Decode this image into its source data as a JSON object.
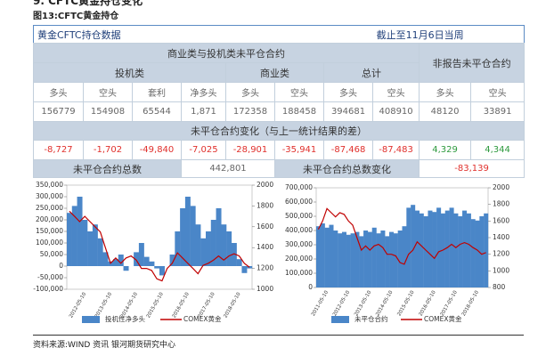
{
  "header": {
    "section": "9. CFTC黄金持仓变化",
    "caption": "图13:CFTC黄金持仓"
  },
  "table": {
    "title": "黄金CFTC持仓数据",
    "date_note": "截止至11月6日当周",
    "group_header": "商业类与投机类未平仓合约",
    "nonreport_header": "非报告未平仓合约",
    "subgroups": [
      "投机类",
      "商业类",
      "总计"
    ],
    "columns": [
      "多头",
      "空头",
      "套利",
      "净多头",
      "多头",
      "空头",
      "多头",
      "空头",
      "多头",
      "空头"
    ],
    "values": [
      "156779",
      "154908",
      "65544",
      "1,871",
      "172358",
      "188458",
      "394681",
      "408910",
      "48120",
      "33891"
    ],
    "change_header": "未平仓合约变化（与上一统计结果的差）",
    "changes": [
      "-8,727",
      "-1,702",
      "-49,840",
      "-7,025",
      "-28,901",
      "-35,941",
      "-87,468",
      "-87,483",
      "4,329",
      "4,344"
    ],
    "total_label": "未平仓合约总数",
    "total_value": "442,801",
    "total_change_label": "未平仓合约总数变化",
    "total_change_value": "-83,139"
  },
  "chart_data": [
    {
      "type": "bar",
      "categories": [
        null,
        null,
        null,
        "2012-05-10",
        null,
        null,
        null,
        null,
        "2013-05-10",
        null,
        null,
        null,
        null,
        "2014-05-10",
        null,
        null,
        null,
        null,
        "2015-05-10",
        null,
        null,
        null,
        null,
        "2016-05-10",
        null,
        null,
        null,
        null,
        "2017-05-10",
        null,
        null,
        null,
        null,
        "2018-05-10",
        null,
        null
      ],
      "series": [
        {
          "name": "投机性净多头",
          "color": "#4a86c8",
          "values": [
            230000,
            260000,
            300000,
            200000,
            150000,
            180000,
            120000,
            60000,
            20000,
            30000,
            50000,
            -20000,
            0,
            60000,
            100000,
            40000,
            20000,
            -10000,
            -40000,
            0,
            50000,
            150000,
            250000,
            300000,
            260000,
            180000,
            120000,
            150000,
            200000,
            250000,
            180000,
            150000,
            100000,
            30000,
            -30000,
            -10000
          ]
        },
        {
          "name": "COMEX黄金",
          "color": "#c00000",
          "axis": "y2",
          "values": [
            1750,
            1700,
            1650,
            1700,
            1650,
            1600,
            1550,
            1400,
            1250,
            1300,
            1250,
            1300,
            1320,
            1280,
            1200,
            1200,
            1180,
            1100,
            1080,
            1200,
            1250,
            1350,
            1300,
            1250,
            1200,
            1150,
            1230,
            1250,
            1280,
            1320,
            1280,
            1320,
            1340,
            1320,
            1250,
            1210
          ]
        }
      ],
      "ylim": [
        -100000,
        350000
      ],
      "yticks": [
        {
          "value": -100000,
          "label": "-100,000"
        },
        {
          "value": -50000,
          "label": "-50,000"
        },
        0,
        {
          "value": 50000,
          "label": "50,000"
        },
        {
          "value": 100000,
          "label": "100,000"
        },
        {
          "value": 150000,
          "label": "150,000"
        },
        {
          "value": 200000,
          "label": "200,000"
        },
        {
          "value": 250000,
          "label": "250,000"
        },
        {
          "value": 300000,
          "label": "300,000"
        },
        {
          "value": 350000,
          "label": "350,000"
        }
      ],
      "y2lim": [
        1000,
        2000
      ],
      "y2ticks": [
        1000,
        1200,
        1400,
        1600,
        1800,
        2000
      ]
    },
    {
      "type": "bar",
      "categories": [
        null,
        null,
        "2011-05-10",
        null,
        null,
        null,
        null,
        "2012-05-10",
        null,
        null,
        null,
        null,
        "2013-05-10",
        null,
        null,
        null,
        null,
        "2014-05-10",
        null,
        null,
        null,
        null,
        "2015-05-10",
        null,
        null,
        null,
        null,
        "2016-05-10",
        null,
        null,
        null,
        null,
        "2017-05-10",
        null,
        null,
        null,
        null,
        "2018-05-10",
        null,
        null
      ],
      "series": [
        {
          "name": "未平仓合约",
          "color": "#4a86c8",
          "values": [
            430000,
            450000,
            420000,
            440000,
            400000,
            380000,
            390000,
            370000,
            380000,
            390000,
            360000,
            400000,
            390000,
            420000,
            380000,
            400000,
            360000,
            390000,
            380000,
            400000,
            430000,
            560000,
            580000,
            540000,
            520000,
            500000,
            540000,
            530000,
            560000,
            520000,
            540000,
            560000,
            520000,
            500000,
            540000,
            520000,
            480000,
            470000,
            500000,
            520000
          ]
        },
        {
          "name": "COMEX黄金",
          "color": "#c00000",
          "axis": "y2",
          "values": [
            1500,
            1600,
            1750,
            1700,
            1650,
            1700,
            1680,
            1600,
            1550,
            1400,
            1250,
            1300,
            1250,
            1300,
            1320,
            1280,
            1200,
            1200,
            1180,
            1100,
            1080,
            1200,
            1250,
            1350,
            1300,
            1250,
            1200,
            1150,
            1230,
            1250,
            1280,
            1320,
            1280,
            1320,
            1340,
            1320,
            1280,
            1250,
            1200,
            1220
          ]
        }
      ],
      "ylim": [
        0,
        700000
      ],
      "yticks": [
        0,
        {
          "value": 100000,
          "label": "100,000"
        },
        {
          "value": 200000,
          "label": "200,000"
        },
        {
          "value": 300000,
          "label": "300,000"
        },
        {
          "value": 400000,
          "label": "400,000"
        },
        {
          "value": 500000,
          "label": "500,000"
        },
        {
          "value": 600000,
          "label": "600,000"
        },
        {
          "value": 700000,
          "label": "700,000"
        }
      ],
      "y2lim": [
        800,
        2000
      ],
      "y2ticks": [
        800,
        1000,
        1200,
        1400,
        1600,
        1800,
        2000
      ]
    }
  ],
  "footer": "资料来源:WIND 资讯   银河期货研究中心"
}
